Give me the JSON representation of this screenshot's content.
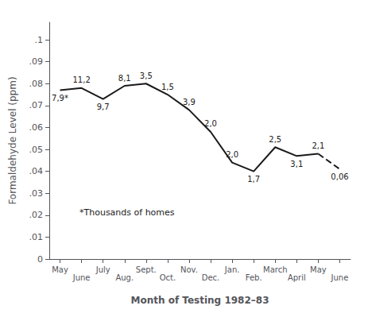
{
  "chart_data": {
    "type": "line",
    "xlabel": "Month of Testing 1982–83",
    "ylabel": "Formaldehyde Level (ppm)",
    "annotation": "*Thousands of homes",
    "categories": [
      "May",
      "June",
      "July",
      "Aug.",
      "Sept.",
      "Oct.",
      "Nov.",
      "Dec.",
      "Jan.",
      "Feb.",
      "March",
      "April",
      "May",
      "June"
    ],
    "series": [
      {
        "values": [
          0.077,
          0.078,
          0.073,
          0.079,
          0.08,
          0.075,
          0.068,
          0.058,
          0.044,
          0.04,
          0.051,
          0.047,
          0.048,
          null
        ],
        "line_style": "solid"
      },
      {
        "values": [
          null,
          null,
          null,
          null,
          null,
          null,
          null,
          null,
          null,
          null,
          null,
          null,
          0.048,
          0.041
        ],
        "line_style": "dashed"
      }
    ],
    "sample_labels": [
      "7,9*",
      "11,2",
      "9,7",
      "8,1",
      "3,5",
      "1,5",
      "3,9",
      "2,0",
      "2,0",
      "1,7",
      "2,5",
      "3,1",
      "2,1",
      "0,06"
    ],
    "color": "#1a1a1a",
    "ylim": [
      0,
      0.108
    ],
    "yticks": [
      0,
      {
        "value": 0.01,
        "label": ".01"
      },
      {
        "value": 0.02,
        "label": ".02"
      },
      {
        "value": 0.03,
        "label": ".03"
      },
      {
        "value": 0.04,
        "label": ".04"
      },
      {
        "value": 0.05,
        "label": ".05"
      },
      {
        "value": 0.06,
        "label": ".06"
      },
      {
        "value": 0.07,
        "label": ".07"
      },
      {
        "value": 0.08,
        "label": ".08"
      },
      {
        "value": 0.09,
        "label": ".09"
      },
      {
        "value": 0.1,
        "label": ".1"
      }
    ],
    "grid": false
  }
}
